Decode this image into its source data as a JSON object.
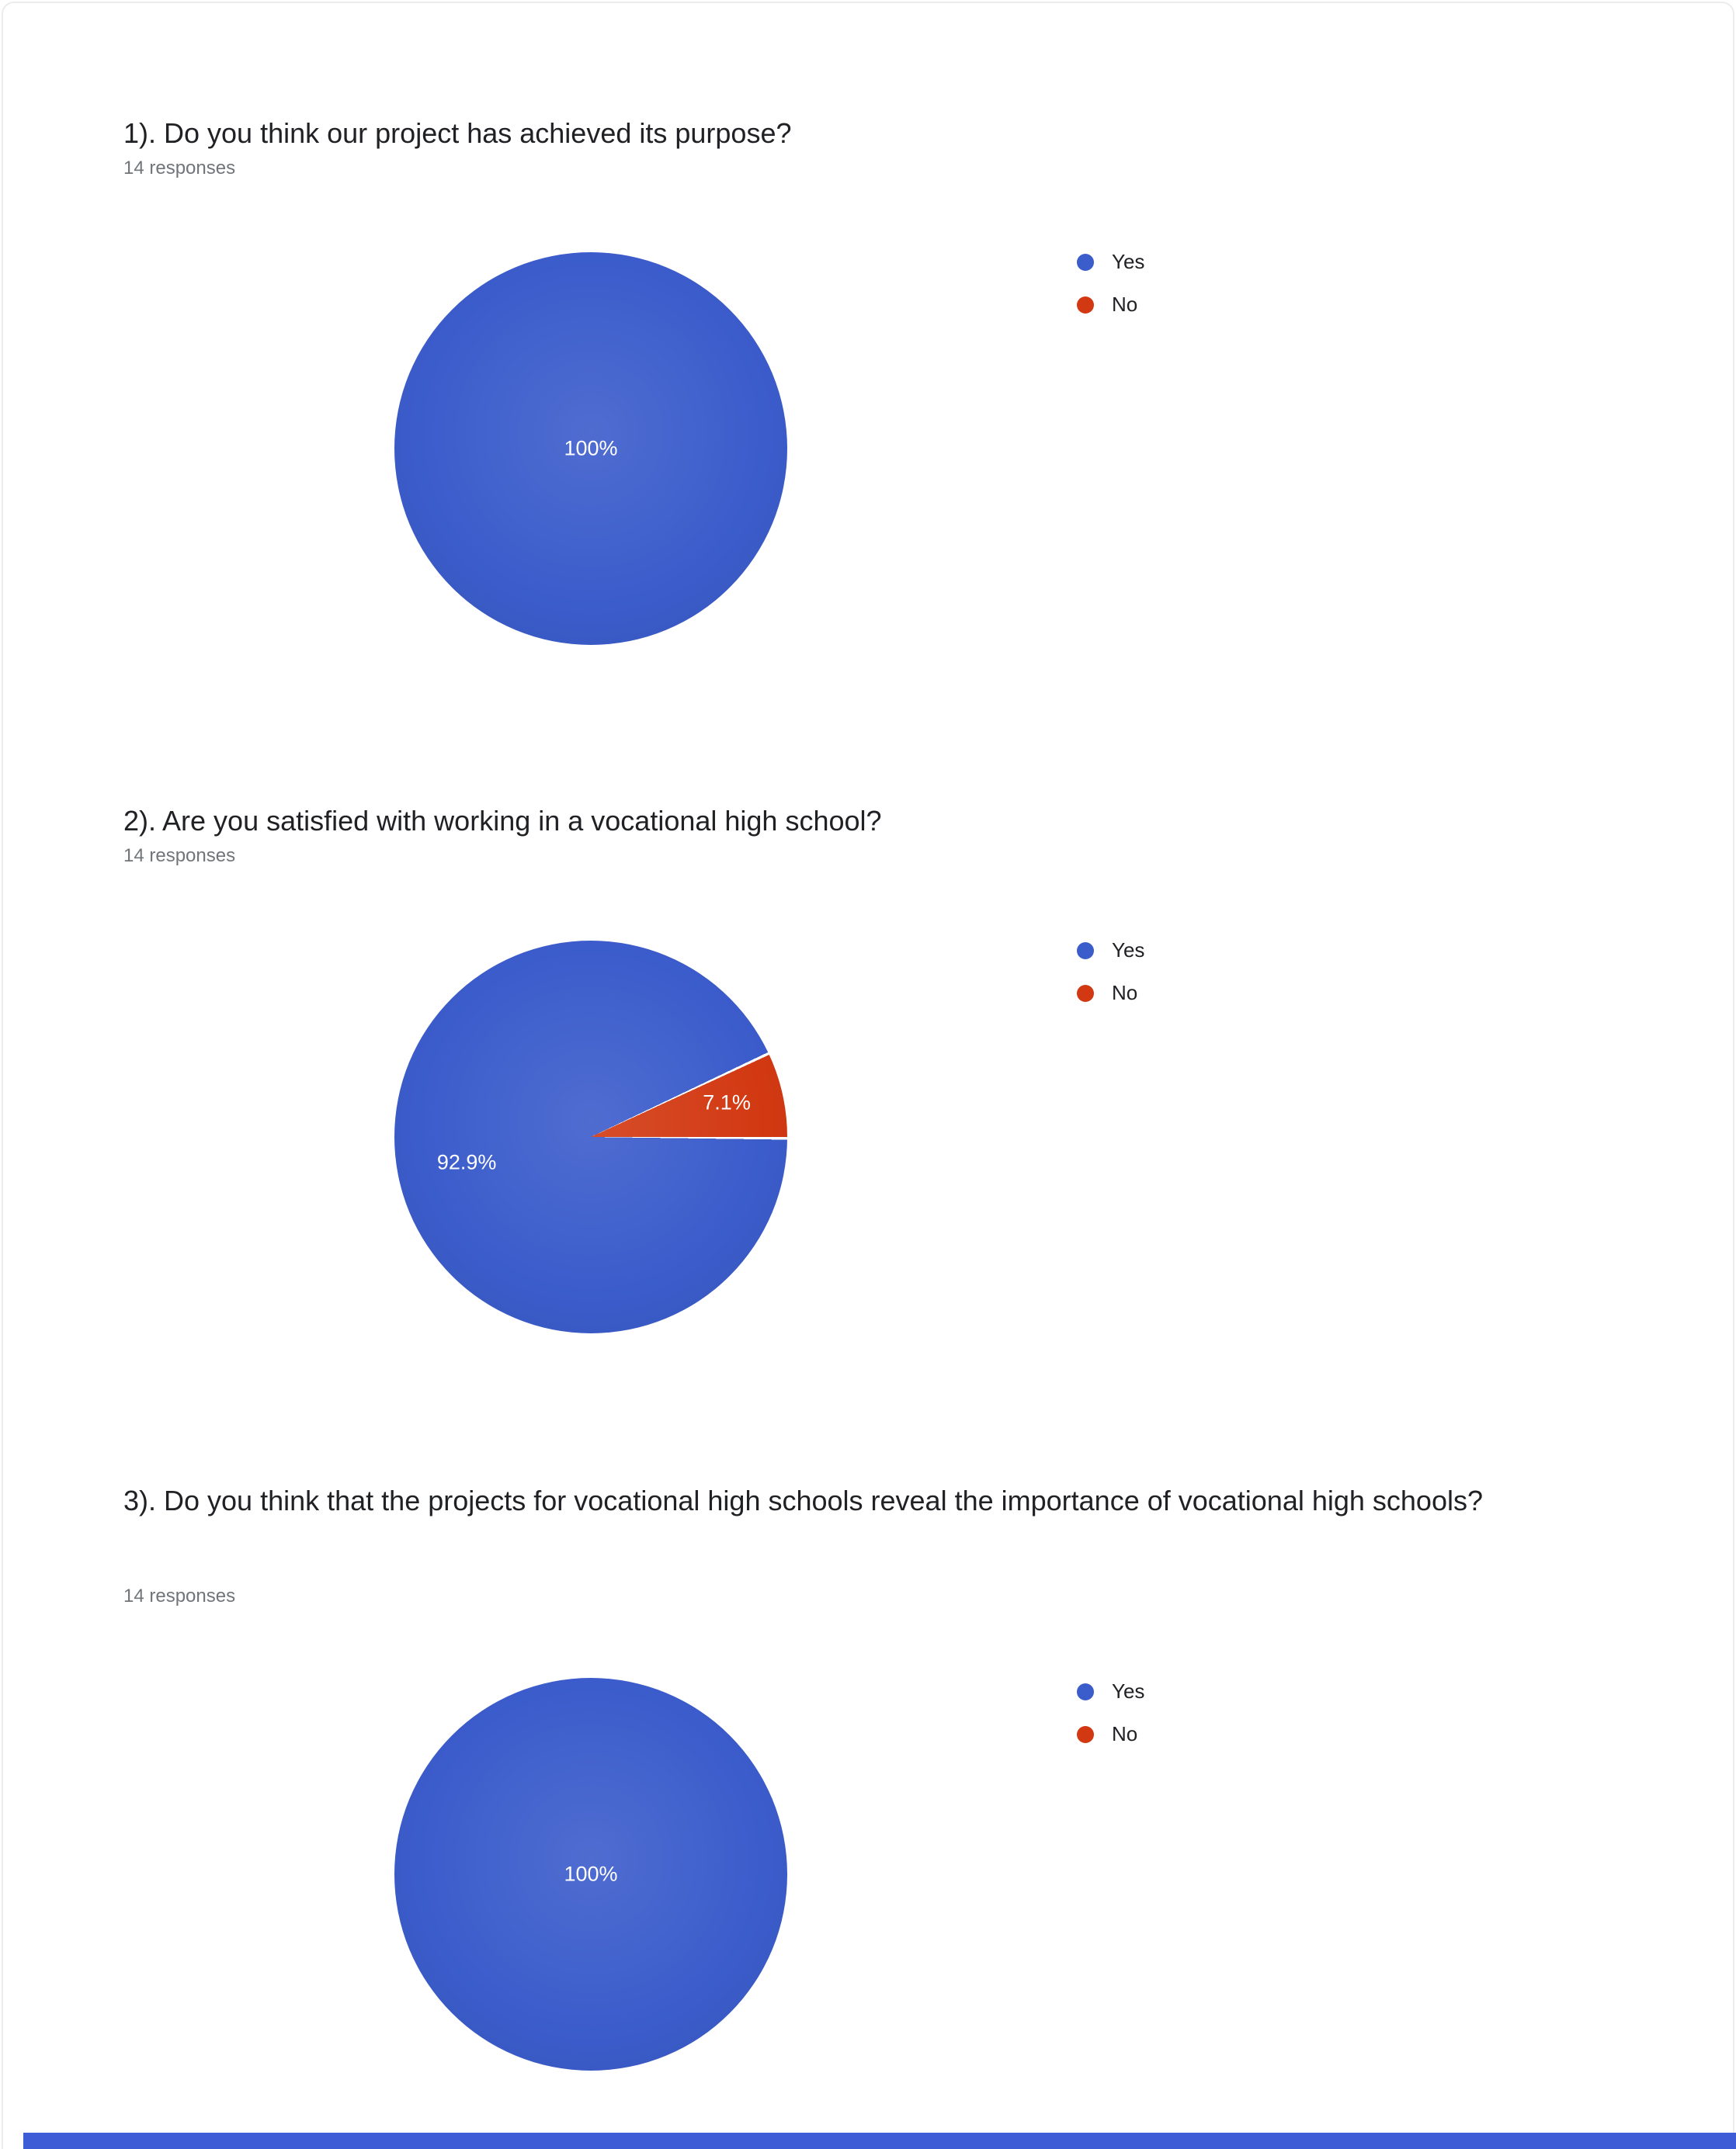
{
  "page": {
    "footer_color": "#3D5CD6"
  },
  "chart_data": [
    {
      "type": "pie",
      "title": "1). Do you think our project has achieved its purpose?",
      "subtitle": "14 responses",
      "categories": [
        "Yes",
        "No"
      ],
      "values": [
        100,
        0
      ],
      "colors": [
        "#3B5CCB",
        "#D23912"
      ],
      "slice_labels": [
        "100%"
      ],
      "legend_position": "right"
    },
    {
      "type": "pie",
      "title": "2). Are you satisfied with working in a vocational high school?",
      "subtitle": "14 responses",
      "categories": [
        "Yes",
        "No"
      ],
      "values": [
        92.9,
        7.1
      ],
      "colors": [
        "#3B5CCB",
        "#D23912"
      ],
      "slice_labels": [
        "92.9%",
        "7.1%"
      ],
      "legend_position": "right"
    },
    {
      "type": "pie",
      "title": "3). Do you think that the projects for vocational high schools reveal the importance of vocational high schools?",
      "subtitle": "14 responses",
      "categories": [
        "Yes",
        "No"
      ],
      "values": [
        100,
        0
      ],
      "colors": [
        "#3B5CCB",
        "#D23912"
      ],
      "slice_labels": [
        "100%"
      ],
      "legend_position": "right"
    }
  ]
}
